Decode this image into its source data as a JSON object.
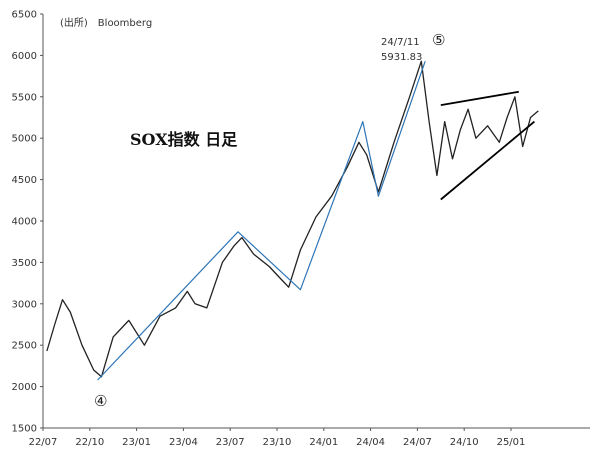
{
  "chart_data": {
    "type": "candlestick",
    "title": "SOX指数 日足",
    "source": "(出所)　Bloomberg",
    "ylim": [
      1500,
      6500
    ],
    "yticks": [
      "1500",
      "2000",
      "2500",
      "3000",
      "3500",
      "4000",
      "4500",
      "5000",
      "5500",
      "6000",
      "6500"
    ],
    "xticks": [
      "22/07",
      "22/10",
      "23/01",
      "23/04",
      "23/07",
      "23/10",
      "24/01",
      "24/04",
      "24/07",
      "24/10",
      "25/01"
    ],
    "grid": false,
    "peak_annotation": {
      "date": "24/7/11",
      "value": "5931.83"
    },
    "wave_labels": {
      "low": "④",
      "high": "⑤"
    },
    "price_path": [
      {
        "x": "22/07",
        "y": 2430
      },
      {
        "x": "22/07",
        "y": 2750
      },
      {
        "x": "22/08",
        "y": 3050
      },
      {
        "x": "22/08",
        "y": 2900
      },
      {
        "x": "22/09",
        "y": 2500
      },
      {
        "x": "22/10",
        "y": 2200
      },
      {
        "x": "22/10",
        "y": 2120
      },
      {
        "x": "22/11",
        "y": 2600
      },
      {
        "x": "22/12",
        "y": 2800
      },
      {
        "x": "23/01",
        "y": 2500
      },
      {
        "x": "23/02",
        "y": 2850
      },
      {
        "x": "23/03",
        "y": 2950
      },
      {
        "x": "23/04",
        "y": 3150
      },
      {
        "x": "23/04",
        "y": 3000
      },
      {
        "x": "23/05",
        "y": 2950
      },
      {
        "x": "23/06",
        "y": 3500
      },
      {
        "x": "23/07",
        "y": 3700
      },
      {
        "x": "23/07",
        "y": 3800
      },
      {
        "x": "23/08",
        "y": 3600
      },
      {
        "x": "23/09",
        "y": 3450
      },
      {
        "x": "23/10",
        "y": 3300
      },
      {
        "x": "23/10",
        "y": 3200
      },
      {
        "x": "23/11",
        "y": 3650
      },
      {
        "x": "23/12",
        "y": 4050
      },
      {
        "x": "24/01",
        "y": 4300
      },
      {
        "x": "24/02",
        "y": 4650
      },
      {
        "x": "24/03",
        "y": 4950
      },
      {
        "x": "24/03",
        "y": 4800
      },
      {
        "x": "24/04",
        "y": 4350
      },
      {
        "x": "24/05",
        "y": 4950
      },
      {
        "x": "24/06",
        "y": 5500
      },
      {
        "x": "24/07",
        "y": 5930
      },
      {
        "x": "24/07",
        "y": 5200
      },
      {
        "x": "24/08",
        "y": 4550
      },
      {
        "x": "24/08",
        "y": 5200
      },
      {
        "x": "24/09",
        "y": 4750
      },
      {
        "x": "24/09",
        "y": 5100
      },
      {
        "x": "24/10",
        "y": 5350
      },
      {
        "x": "24/10",
        "y": 5000
      },
      {
        "x": "24/11",
        "y": 5150
      },
      {
        "x": "24/12",
        "y": 4950
      },
      {
        "x": "24/12",
        "y": 5250
      },
      {
        "x": "25/01",
        "y": 5500
      },
      {
        "x": "25/01",
        "y": 4900
      },
      {
        "x": "25/02",
        "y": 5250
      },
      {
        "x": "25/02",
        "y": 5330
      }
    ],
    "wave_lines": [
      [
        {
          "x": "22/10",
          "y": 2080
        },
        {
          "x": "23/07",
          "y": 3870
        },
        {
          "x": "23/11",
          "y": 3170
        },
        {
          "x": "24/03",
          "y": 5200
        },
        {
          "x": "24/04",
          "y": 4300
        },
        {
          "x": "24/07",
          "y": 5930
        }
      ]
    ],
    "triangle_lines": [
      [
        {
          "x": "24/08",
          "y": 5400
        },
        {
          "x": "25/01",
          "y": 5560
        }
      ],
      [
        {
          "x": "24/08",
          "y": 4260
        },
        {
          "x": "25/02",
          "y": 5200
        }
      ]
    ],
    "colors": {
      "price": "#222222",
      "wave": "#2e75b6",
      "triangle": "#000000",
      "axis": "#555555"
    }
  }
}
